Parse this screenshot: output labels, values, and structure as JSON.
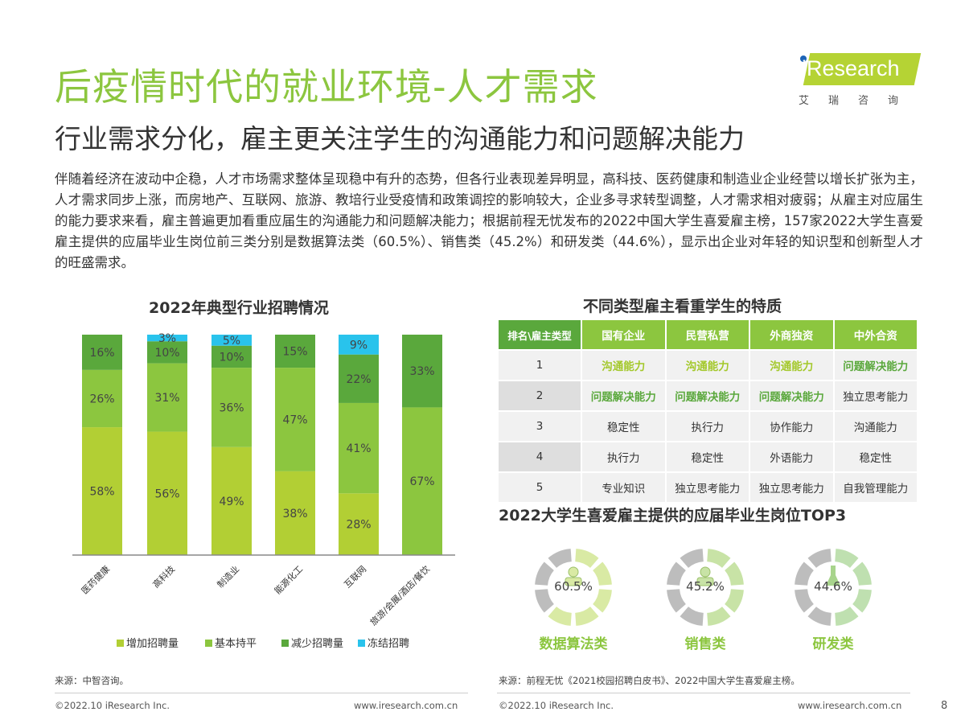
{
  "header": {
    "title": "后疫情时代的就业环境-人才需求",
    "subtitle": "行业需求分化，雇主更关注学生的沟通能力和问题解决能力"
  },
  "logo": {
    "brand": "iResearch",
    "cn": "艾瑞咨询",
    "brand_color": "#b5d334"
  },
  "body_text": "伴随着经济在波动中企稳，人才市场需求整体呈现稳中有升的态势，但各行业表现差异明显，高科技、医药健康和制造业企业经营以增长扩张为主，人才需求同步上涨，而房地产、互联网、旅游、教培行业受疫情和政策调控的影响较大，企业多寻求转型调整，人才需求相对疲弱；从雇主对应届生的能力要求来看，雇主普遍更加看重应届生的沟通能力和问题解决能力；根据前程无忧发布的2022中国大学生喜爱雇主榜，157家2022大学生喜爱雇主提供的应届毕业生岗位前三类分别是数据算法类（60.5%）、销售类（45.2%）和研发类（44.6%），显示出企业对年轻的知识型和创新型人才的旺盛需求。",
  "chart_data": {
    "type": "bar",
    "stacked": true,
    "title": "2022年典型行业招聘情况",
    "categories": [
      "医药健康",
      "高科技",
      "制造业",
      "能源化工",
      "互联网",
      "旅游/会展/酒店/餐饮"
    ],
    "series": [
      {
        "name": "增加招聘量",
        "color": "#b2cf34",
        "values": [
          58,
          56,
          49,
          38,
          28,
          0
        ]
      },
      {
        "name": "基本持平",
        "color": "#8cc63f",
        "values": [
          26,
          31,
          36,
          47,
          41,
          67
        ]
      },
      {
        "name": "减少招聘量",
        "color": "#5aa83c",
        "values": [
          16,
          10,
          10,
          15,
          22,
          33
        ]
      },
      {
        "name": "冻结招聘",
        "color": "#29c3ec",
        "values": [
          0,
          3,
          5,
          0,
          9,
          0
        ]
      }
    ],
    "ylim": [
      0,
      100
    ],
    "legend": "bottom",
    "grid": false
  },
  "source_left": "来源：中智咨询。",
  "table": {
    "title": "不同类型雇主看重学生的特质",
    "headers": [
      "排名\\雇主类型",
      "国有企业",
      "民营私营",
      "外商独资",
      "中外合资"
    ],
    "rows": [
      [
        "1",
        "沟通能力",
        "沟通能力",
        "沟通能力",
        "问题解决能力"
      ],
      [
        "2",
        "问题解决能力",
        "问题解决能力",
        "问题解决能力",
        "独立思考能力"
      ],
      [
        "3",
        "稳定性",
        "执行力",
        "协作能力",
        "沟通能力"
      ],
      [
        "4",
        "执行力",
        "稳定性",
        "外语能力",
        "稳定性"
      ],
      [
        "5",
        "专业知识",
        "独立思考能力",
        "独立思考能力",
        "自我管理能力"
      ]
    ]
  },
  "top3": {
    "title": "2022大学生喜爱雇主提供的应届毕业生岗位TOP3",
    "items": [
      {
        "label": "数据算法类",
        "value": "60.5%",
        "pct": 60.5,
        "icon": "person-laptop-icon",
        "color": "#d9eaa4"
      },
      {
        "label": "销售类",
        "value": "45.2%",
        "pct": 45.2,
        "icon": "person-tie-icon",
        "color": "#c8e3a6"
      },
      {
        "label": "研发类",
        "value": "44.6%",
        "pct": 44.6,
        "icon": "flask-icon",
        "color": "#bfe0b0"
      }
    ]
  },
  "source_right": "来源：前程无忧《2021校园招聘白皮书》、2022中国大学生喜爱雇主榜。",
  "footer": {
    "copyright": "©2022.10 iResearch Inc.",
    "url": "www.iresearch.com.cn",
    "page": "8"
  }
}
